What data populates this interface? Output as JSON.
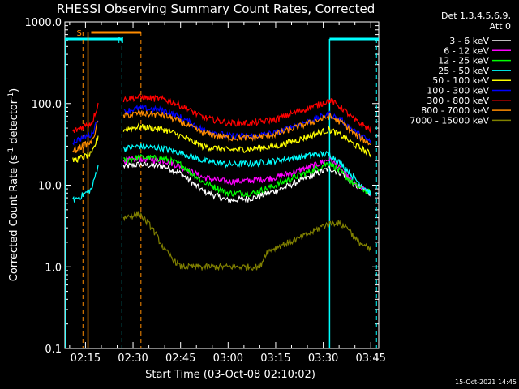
{
  "chart_data": {
    "type": "line",
    "title": "RHESSI Observing Summary Count Rates, Corrected",
    "xlabel": "Start Time (03-Oct-08 02:10:02)",
    "ylabel_main": "Corrected Count Rate (s",
    "ylabel_sup1": "-1",
    "ylabel_mid": " detector",
    "ylabel_sup2": "-1",
    "ylabel_end": ")",
    "y_scale": "log",
    "ylim": [
      0.1,
      1000
    ],
    "xlim_minutes": [
      8.5,
      107.5
    ],
    "x_ticks": [
      "02:15",
      "02:30",
      "02:45",
      "03:00",
      "03:15",
      "03:30",
      "03:45"
    ],
    "x_tick_minutes": [
      15,
      30,
      45,
      60,
      75,
      90,
      105
    ],
    "y_tick_labels": [
      "0.1",
      "1.0",
      "10.0",
      "100.0",
      "1000.0"
    ],
    "y_tick_values": [
      0.1,
      1,
      10,
      100,
      1000
    ],
    "legend_header1": "Det 1,3,4,5,6,9,",
    "legend_header2": "Att 0",
    "legend_placement": "top-right outside",
    "series": [
      {
        "name": "3 - 6 keV",
        "color": "#ffffff",
        "pts": [
          [
            27,
            17
          ],
          [
            32,
            18
          ],
          [
            40,
            17
          ],
          [
            45,
            14
          ],
          [
            52,
            8.5
          ],
          [
            60,
            6.5
          ],
          [
            68,
            7
          ],
          [
            75,
            8.5
          ],
          [
            82,
            11
          ],
          [
            88,
            14
          ],
          [
            92,
            16
          ],
          [
            96,
            14
          ],
          [
            100,
            10
          ],
          [
            105,
            8
          ]
        ]
      },
      {
        "name": "6 - 12 keV",
        "color": "#ff00ff",
        "pts": [
          [
            27,
            20
          ],
          [
            32,
            21
          ],
          [
            40,
            20
          ],
          [
            45,
            17
          ],
          [
            52,
            12.5
          ],
          [
            60,
            11
          ],
          [
            68,
            11.5
          ],
          [
            75,
            12.5
          ],
          [
            82,
            15
          ],
          [
            88,
            18
          ],
          [
            92,
            21
          ],
          [
            96,
            15
          ],
          [
            100,
            10
          ],
          [
            105,
            8
          ]
        ]
      },
      {
        "name": "12 - 25 keV",
        "color": "#00ff00",
        "pts": [
          [
            27,
            20
          ],
          [
            32,
            22
          ],
          [
            40,
            21
          ],
          [
            45,
            18
          ],
          [
            52,
            11
          ],
          [
            60,
            8
          ],
          [
            68,
            8
          ],
          [
            75,
            10
          ],
          [
            82,
            13
          ],
          [
            88,
            16
          ],
          [
            92,
            19
          ],
          [
            96,
            14
          ],
          [
            100,
            10
          ],
          [
            105,
            8
          ]
        ]
      },
      {
        "name": "25 - 50 keV",
        "color": "#00ffff",
        "pts": [
          [
            11,
            6.5
          ],
          [
            14,
            7.5
          ],
          [
            17,
            9
          ],
          [
            19,
            18
          ],
          [
            27,
            28
          ],
          [
            32,
            30
          ],
          [
            40,
            28
          ],
          [
            45,
            25
          ],
          [
            52,
            20
          ],
          [
            60,
            18
          ],
          [
            68,
            18.5
          ],
          [
            75,
            20
          ],
          [
            82,
            22
          ],
          [
            88,
            24
          ],
          [
            92,
            24
          ],
          [
            96,
            18
          ],
          [
            100,
            12
          ],
          [
            105,
            8
          ]
        ]
      },
      {
        "name": "50 - 100 keV",
        "color": "#ffff00",
        "pts": [
          [
            11,
            20
          ],
          [
            14,
            22
          ],
          [
            17,
            24
          ],
          [
            19,
            40
          ],
          [
            27,
            48
          ],
          [
            32,
            52
          ],
          [
            40,
            48
          ],
          [
            45,
            40
          ],
          [
            52,
            30
          ],
          [
            60,
            27
          ],
          [
            68,
            28
          ],
          [
            75,
            30
          ],
          [
            82,
            36
          ],
          [
            88,
            43
          ],
          [
            92,
            48
          ],
          [
            96,
            40
          ],
          [
            100,
            31
          ],
          [
            105,
            24
          ]
        ]
      },
      {
        "name": "100 - 300 keV",
        "color": "#0000ff",
        "pts": [
          [
            11,
            34
          ],
          [
            14,
            38
          ],
          [
            17,
            42
          ],
          [
            19,
            68
          ],
          [
            27,
            80
          ],
          [
            32,
            88
          ],
          [
            40,
            82
          ],
          [
            45,
            68
          ],
          [
            52,
            48
          ],
          [
            60,
            40
          ],
          [
            68,
            40
          ],
          [
            75,
            44
          ],
          [
            82,
            55
          ],
          [
            88,
            66
          ],
          [
            92,
            74
          ],
          [
            96,
            62
          ],
          [
            100,
            45
          ],
          [
            105,
            34
          ]
        ]
      },
      {
        "name": "300 - 800 keV",
        "color": "#ff0000",
        "pts": [
          [
            11,
            45
          ],
          [
            14,
            52
          ],
          [
            17,
            58
          ],
          [
            19,
            100
          ],
          [
            27,
            112
          ],
          [
            32,
            120
          ],
          [
            40,
            112
          ],
          [
            45,
            95
          ],
          [
            52,
            68
          ],
          [
            60,
            58
          ],
          [
            68,
            58
          ],
          [
            75,
            64
          ],
          [
            82,
            80
          ],
          [
            88,
            95
          ],
          [
            92,
            110
          ],
          [
            96,
            88
          ],
          [
            100,
            62
          ],
          [
            105,
            48
          ]
        ]
      },
      {
        "name": "800 - 7000 keV",
        "color": "#ff8c00",
        "pts": [
          [
            11,
            26
          ],
          [
            14,
            30
          ],
          [
            17,
            34
          ],
          [
            19,
            60
          ],
          [
            27,
            70
          ],
          [
            32,
            76
          ],
          [
            40,
            72
          ],
          [
            45,
            60
          ],
          [
            52,
            44
          ],
          [
            60,
            38
          ],
          [
            68,
            38
          ],
          [
            75,
            42
          ],
          [
            82,
            52
          ],
          [
            88,
            62
          ],
          [
            92,
            70
          ],
          [
            96,
            58
          ],
          [
            100,
            42
          ],
          [
            105,
            32
          ]
        ]
      },
      {
        "name": "7000 - 15000 keV",
        "color": "#808000",
        "pts": [
          [
            27,
            4
          ],
          [
            32,
            4.5
          ],
          [
            36,
            3
          ],
          [
            40,
            1.6
          ],
          [
            45,
            1
          ],
          [
            55,
            1
          ],
          [
            65,
            1
          ],
          [
            70,
            1
          ],
          [
            72,
            1.5
          ],
          [
            76,
            1.8
          ],
          [
            82,
            2.2
          ],
          [
            86,
            2.6
          ],
          [
            90,
            3.2
          ],
          [
            94,
            3.5
          ],
          [
            98,
            3
          ],
          [
            100,
            2.2
          ],
          [
            103,
            1.8
          ],
          [
            105,
            1.6
          ]
        ]
      }
    ],
    "flag_lines": [
      {
        "label": "S",
        "color": "#ff8c00",
        "x_minutes": 14.2,
        "bar_end_minutes": 32.5
      },
      {
        "label": "N",
        "color": "#00ffff",
        "x_minutes": 26.5,
        "bar_end_minutes": 26.5
      }
    ],
    "footer_date": "15-Oct-2021 14:45"
  }
}
